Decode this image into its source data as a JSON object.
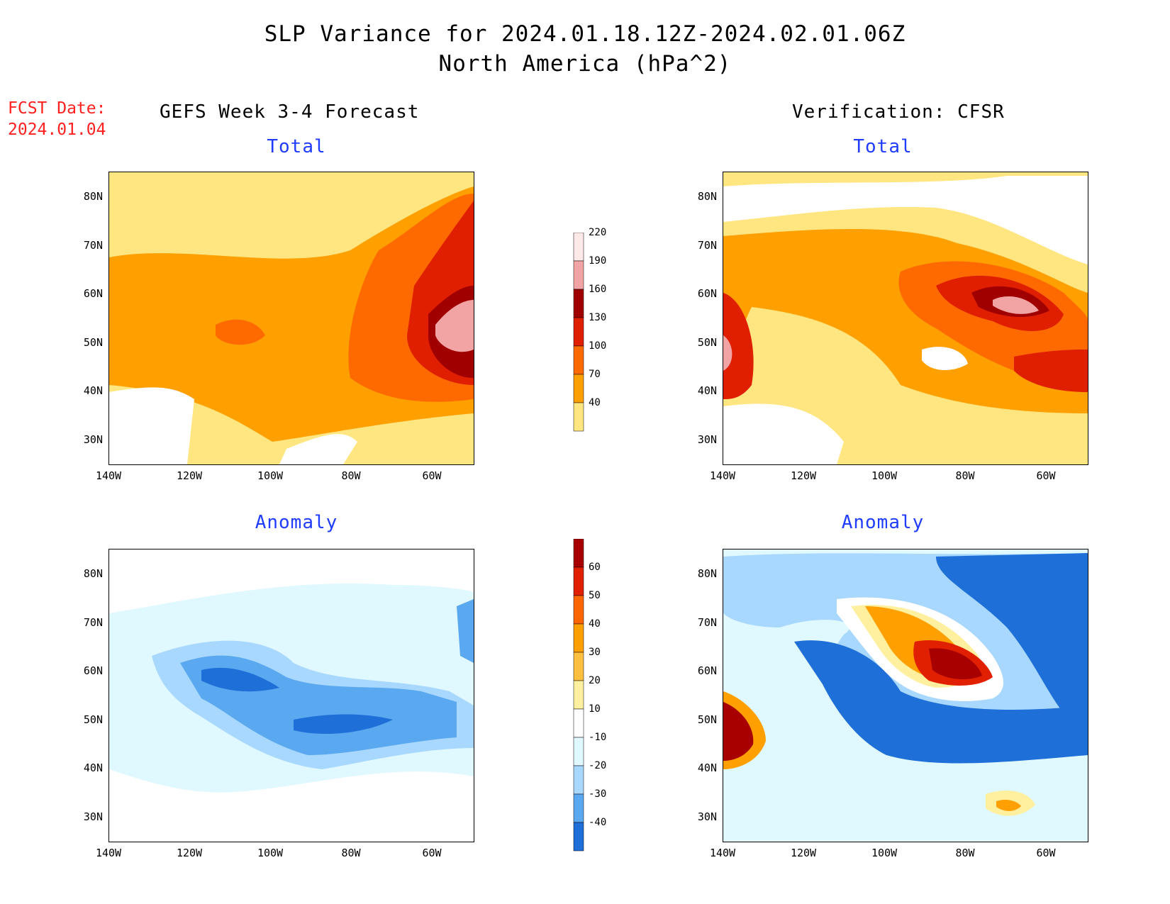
{
  "title": {
    "line1": "SLP Variance for 2024.01.18.12Z-2024.02.01.06Z",
    "line2": "North America (hPa^2)"
  },
  "forecast_date": {
    "label": "FCST Date:",
    "value": "2024.01.04"
  },
  "columns": {
    "left": "GEFS Week 3-4 Forecast",
    "right": "Verification: CFSR"
  },
  "panels": {
    "forecast_total": {
      "title": "Total"
    },
    "verification_total": {
      "title": "Total"
    },
    "forecast_anomaly": {
      "title": "Anomaly"
    },
    "verification_anomaly": {
      "title": "Anomaly"
    }
  },
  "axes": {
    "lat_ticks": [
      "80N",
      "70N",
      "60N",
      "50N",
      "40N",
      "30N"
    ],
    "lon_ticks": [
      "140W",
      "120W",
      "100W",
      "80W",
      "60W"
    ]
  },
  "colorbars": {
    "total": {
      "levels": [
        "220",
        "190",
        "160",
        "130",
        "100",
        "70",
        "40"
      ],
      "colors": [
        "#ffe8e8",
        "#f2a3a3",
        "#a00000",
        "#e01e00",
        "#ff6a00",
        "#ff9f00",
        "#ffe680"
      ]
    },
    "anomaly": {
      "levels": [
        "60",
        "50",
        "40",
        "30",
        "20",
        "10",
        "-10",
        "-20",
        "-30",
        "-40"
      ],
      "colors": [
        "#a80000",
        "#e02000",
        "#ff6600",
        "#ffa000",
        "#ffc040",
        "#fff0a0",
        "#ffffff",
        "#e0f8ff",
        "#a8d8ff",
        "#5aa8f0",
        "#1f6fd8"
      ]
    }
  }
}
